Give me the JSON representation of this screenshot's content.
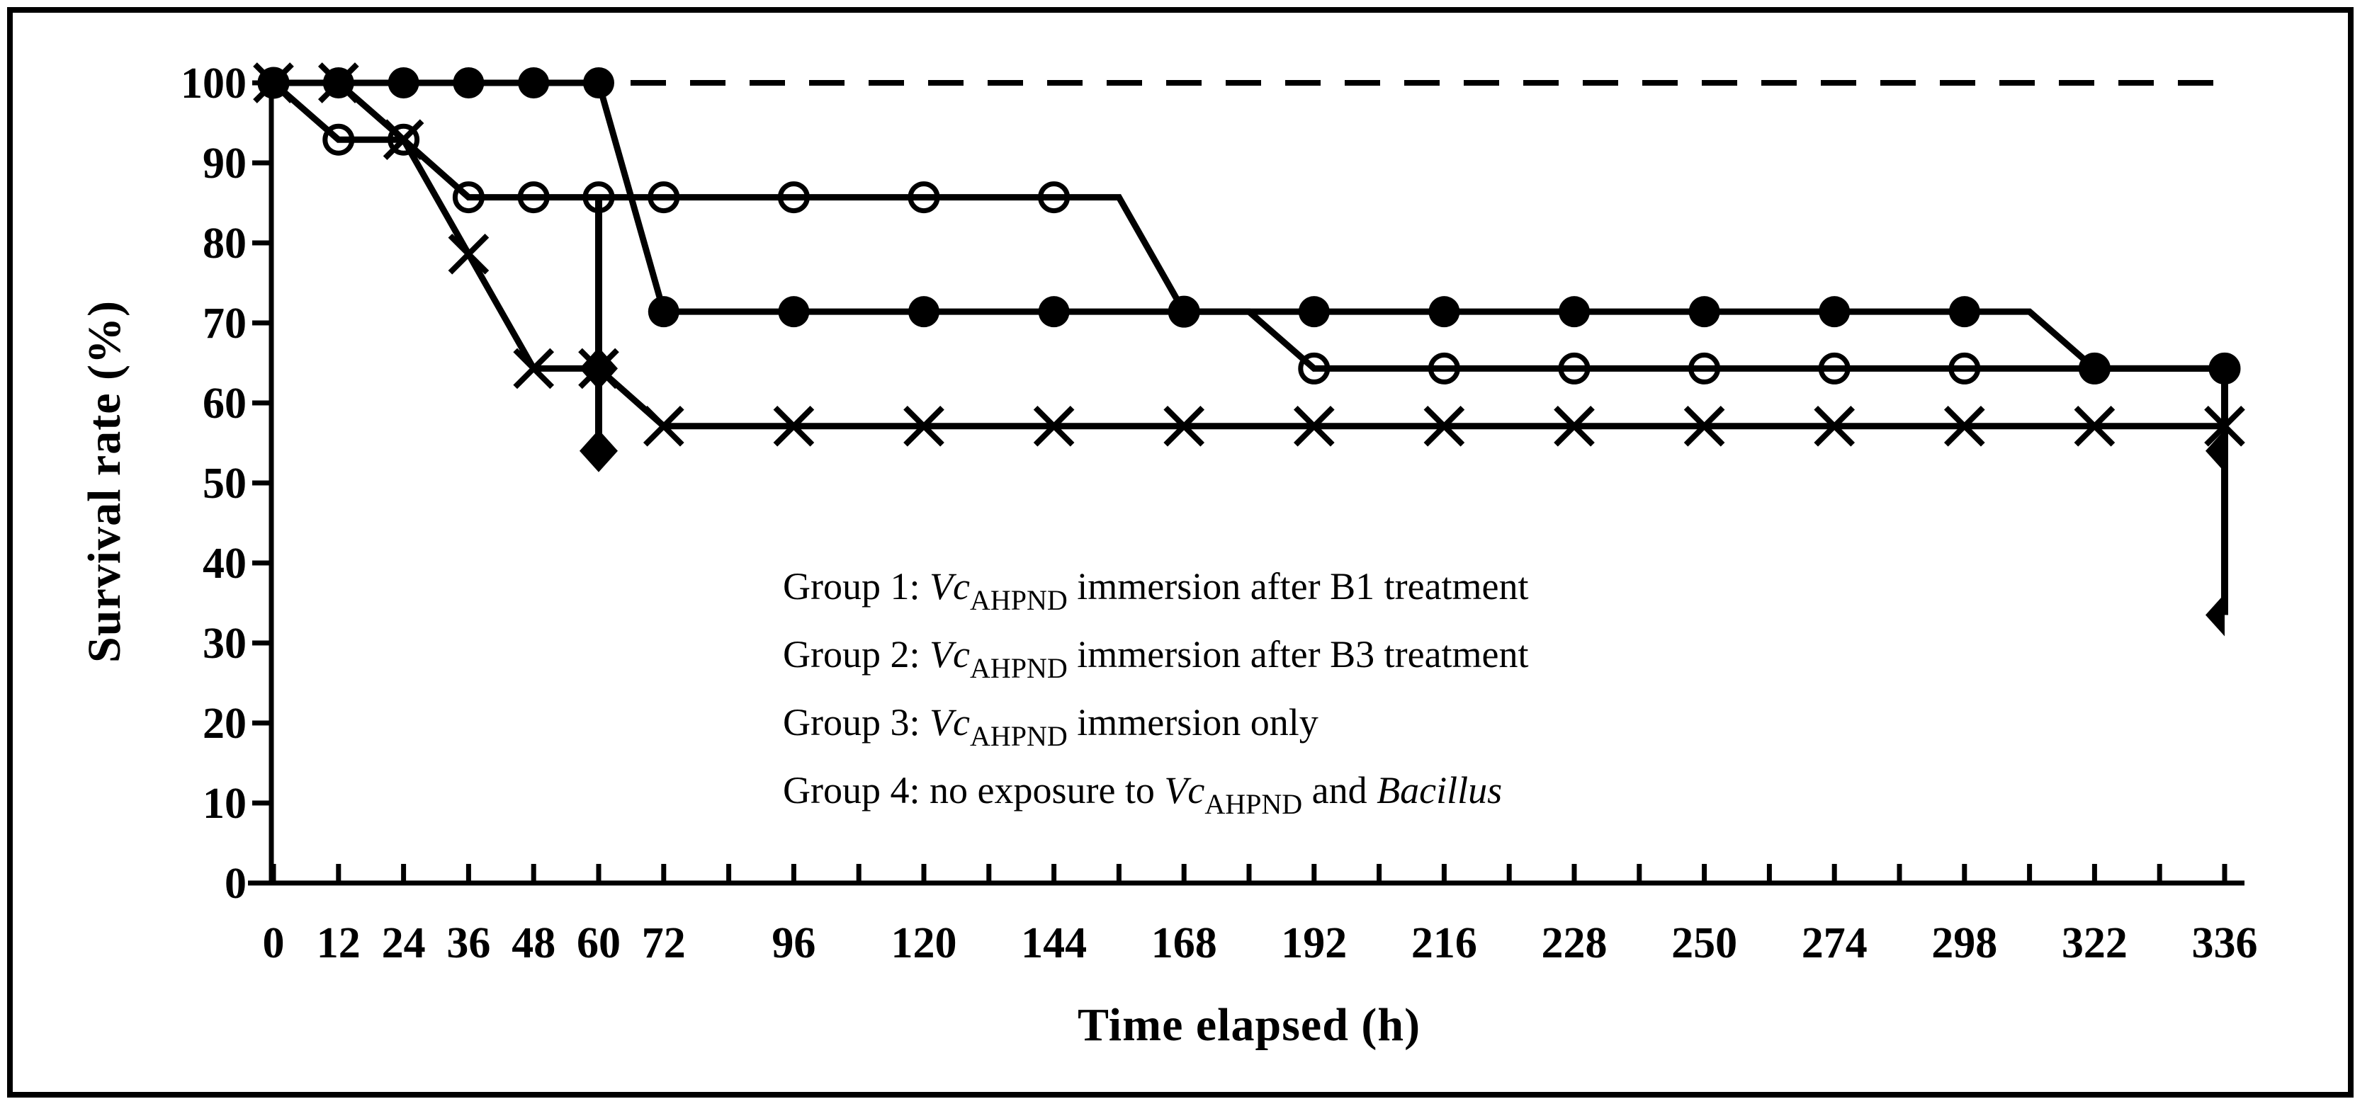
{
  "colors": {
    "ink": "#000000",
    "background": "#ffffff"
  },
  "chart_data": {
    "type": "line",
    "title": "",
    "xlabel": "Time elapsed (h)",
    "ylabel": "Survival rate (%)",
    "grid": false,
    "ylim": [
      0,
      100
    ],
    "y_ticks": [
      0,
      10,
      20,
      30,
      40,
      50,
      60,
      70,
      80,
      90,
      100
    ],
    "x_tick_labels": [
      "0",
      "12",
      "24",
      "36",
      "48",
      "60",
      "72",
      "96",
      "120",
      "144",
      "168",
      "192",
      "216",
      "228",
      "250",
      "274",
      "298",
      "322",
      "336"
    ],
    "legend_position": "center-inside",
    "series": [
      {
        "id": "group4",
        "name": "Group 4",
        "marker": "none",
        "line_style": "dashed",
        "values": [
          100,
          100,
          100,
          100,
          100,
          100,
          100,
          100,
          100,
          100,
          100,
          100,
          100,
          100,
          100,
          100,
          100,
          100,
          100
        ],
        "vertices": [
          [
            0,
            100
          ],
          [
            30,
            100
          ]
        ]
      },
      {
        "id": "group2",
        "name": "Group 2",
        "marker": "open-circle",
        "line_style": "solid",
        "values": [
          100,
          92.9,
          92.9,
          85.7,
          85.7,
          85.7,
          85.7,
          85.7,
          85.7,
          85.7,
          71.4,
          64.3,
          64.3,
          64.3,
          64.3,
          64.3,
          64.3,
          64.3,
          64.3
        ],
        "vertices": [
          [
            0,
            100
          ],
          [
            1,
            92.9
          ],
          [
            2,
            92.9
          ],
          [
            3,
            85.7
          ],
          [
            13,
            85.7
          ],
          [
            14,
            71.4
          ],
          [
            15,
            71.4
          ],
          [
            16,
            64.3
          ],
          [
            30,
            64.3
          ]
        ]
      },
      {
        "id": "group3",
        "name": "Group 3",
        "marker": "x",
        "line_style": "solid",
        "values": [
          100,
          100,
          92.9,
          78.6,
          64.3,
          64.3,
          57.1,
          57.1,
          57.1,
          57.1,
          57.1,
          57.1,
          57.1,
          57.1,
          57.1,
          57.1,
          57.1,
          57.1,
          57.1
        ],
        "vertices": [
          [
            0,
            100
          ],
          [
            1,
            100
          ],
          [
            2,
            92.9
          ],
          [
            3,
            78.6
          ],
          [
            4,
            64.3
          ],
          [
            5,
            64.3
          ],
          [
            6,
            57.1
          ],
          [
            30,
            57.1
          ]
        ]
      },
      {
        "id": "group1",
        "name": "Group 1",
        "marker": "filled-circle",
        "line_style": "solid",
        "values": [
          100,
          100,
          100,
          100,
          100,
          100,
          71.4,
          71.4,
          71.4,
          71.4,
          71.4,
          71.4,
          71.4,
          71.4,
          71.4,
          71.4,
          71.4,
          64.3,
          64.3
        ],
        "vertices": [
          [
            0,
            100
          ],
          [
            5,
            100
          ],
          [
            6,
            71.4
          ],
          [
            27,
            71.4
          ],
          [
            28,
            64.3
          ],
          [
            30,
            64.3
          ]
        ]
      }
    ],
    "droplines": [
      {
        "x_index": 5,
        "x_label": "60",
        "y_from": 85.7,
        "y_to": 54,
        "diamonds": [
          64.3,
          54
        ],
        "clipped_right": false
      },
      {
        "x_index": 30,
        "x_label": "336",
        "y_from": 64.3,
        "y_to": 33.5,
        "diamonds": [
          54,
          33.5
        ],
        "clipped_right": true
      }
    ]
  },
  "legend": {
    "lines": [
      [
        {
          "t": "Group 1: "
        },
        {
          "t": "Vc",
          "i": true
        },
        {
          "t": "AHPND",
          "sub": true
        },
        {
          "t": " immersion after B1 treatment"
        }
      ],
      [
        {
          "t": "Group 2: "
        },
        {
          "t": "Vc",
          "i": true
        },
        {
          "t": "AHPND",
          "sub": true
        },
        {
          "t": " immersion after B3 treatment"
        }
      ],
      [
        {
          "t": "Group 3: "
        },
        {
          "t": "Vc",
          "i": true
        },
        {
          "t": "AHPND",
          "sub": true
        },
        {
          "t": " immersion only"
        }
      ],
      [
        {
          "t": "Group 4: no exposure to "
        },
        {
          "t": "Vc",
          "i": true
        },
        {
          "t": "AHPND",
          "sub": true
        },
        {
          "t": " and "
        },
        {
          "t": "Bacillus",
          "i": true
        }
      ]
    ]
  }
}
